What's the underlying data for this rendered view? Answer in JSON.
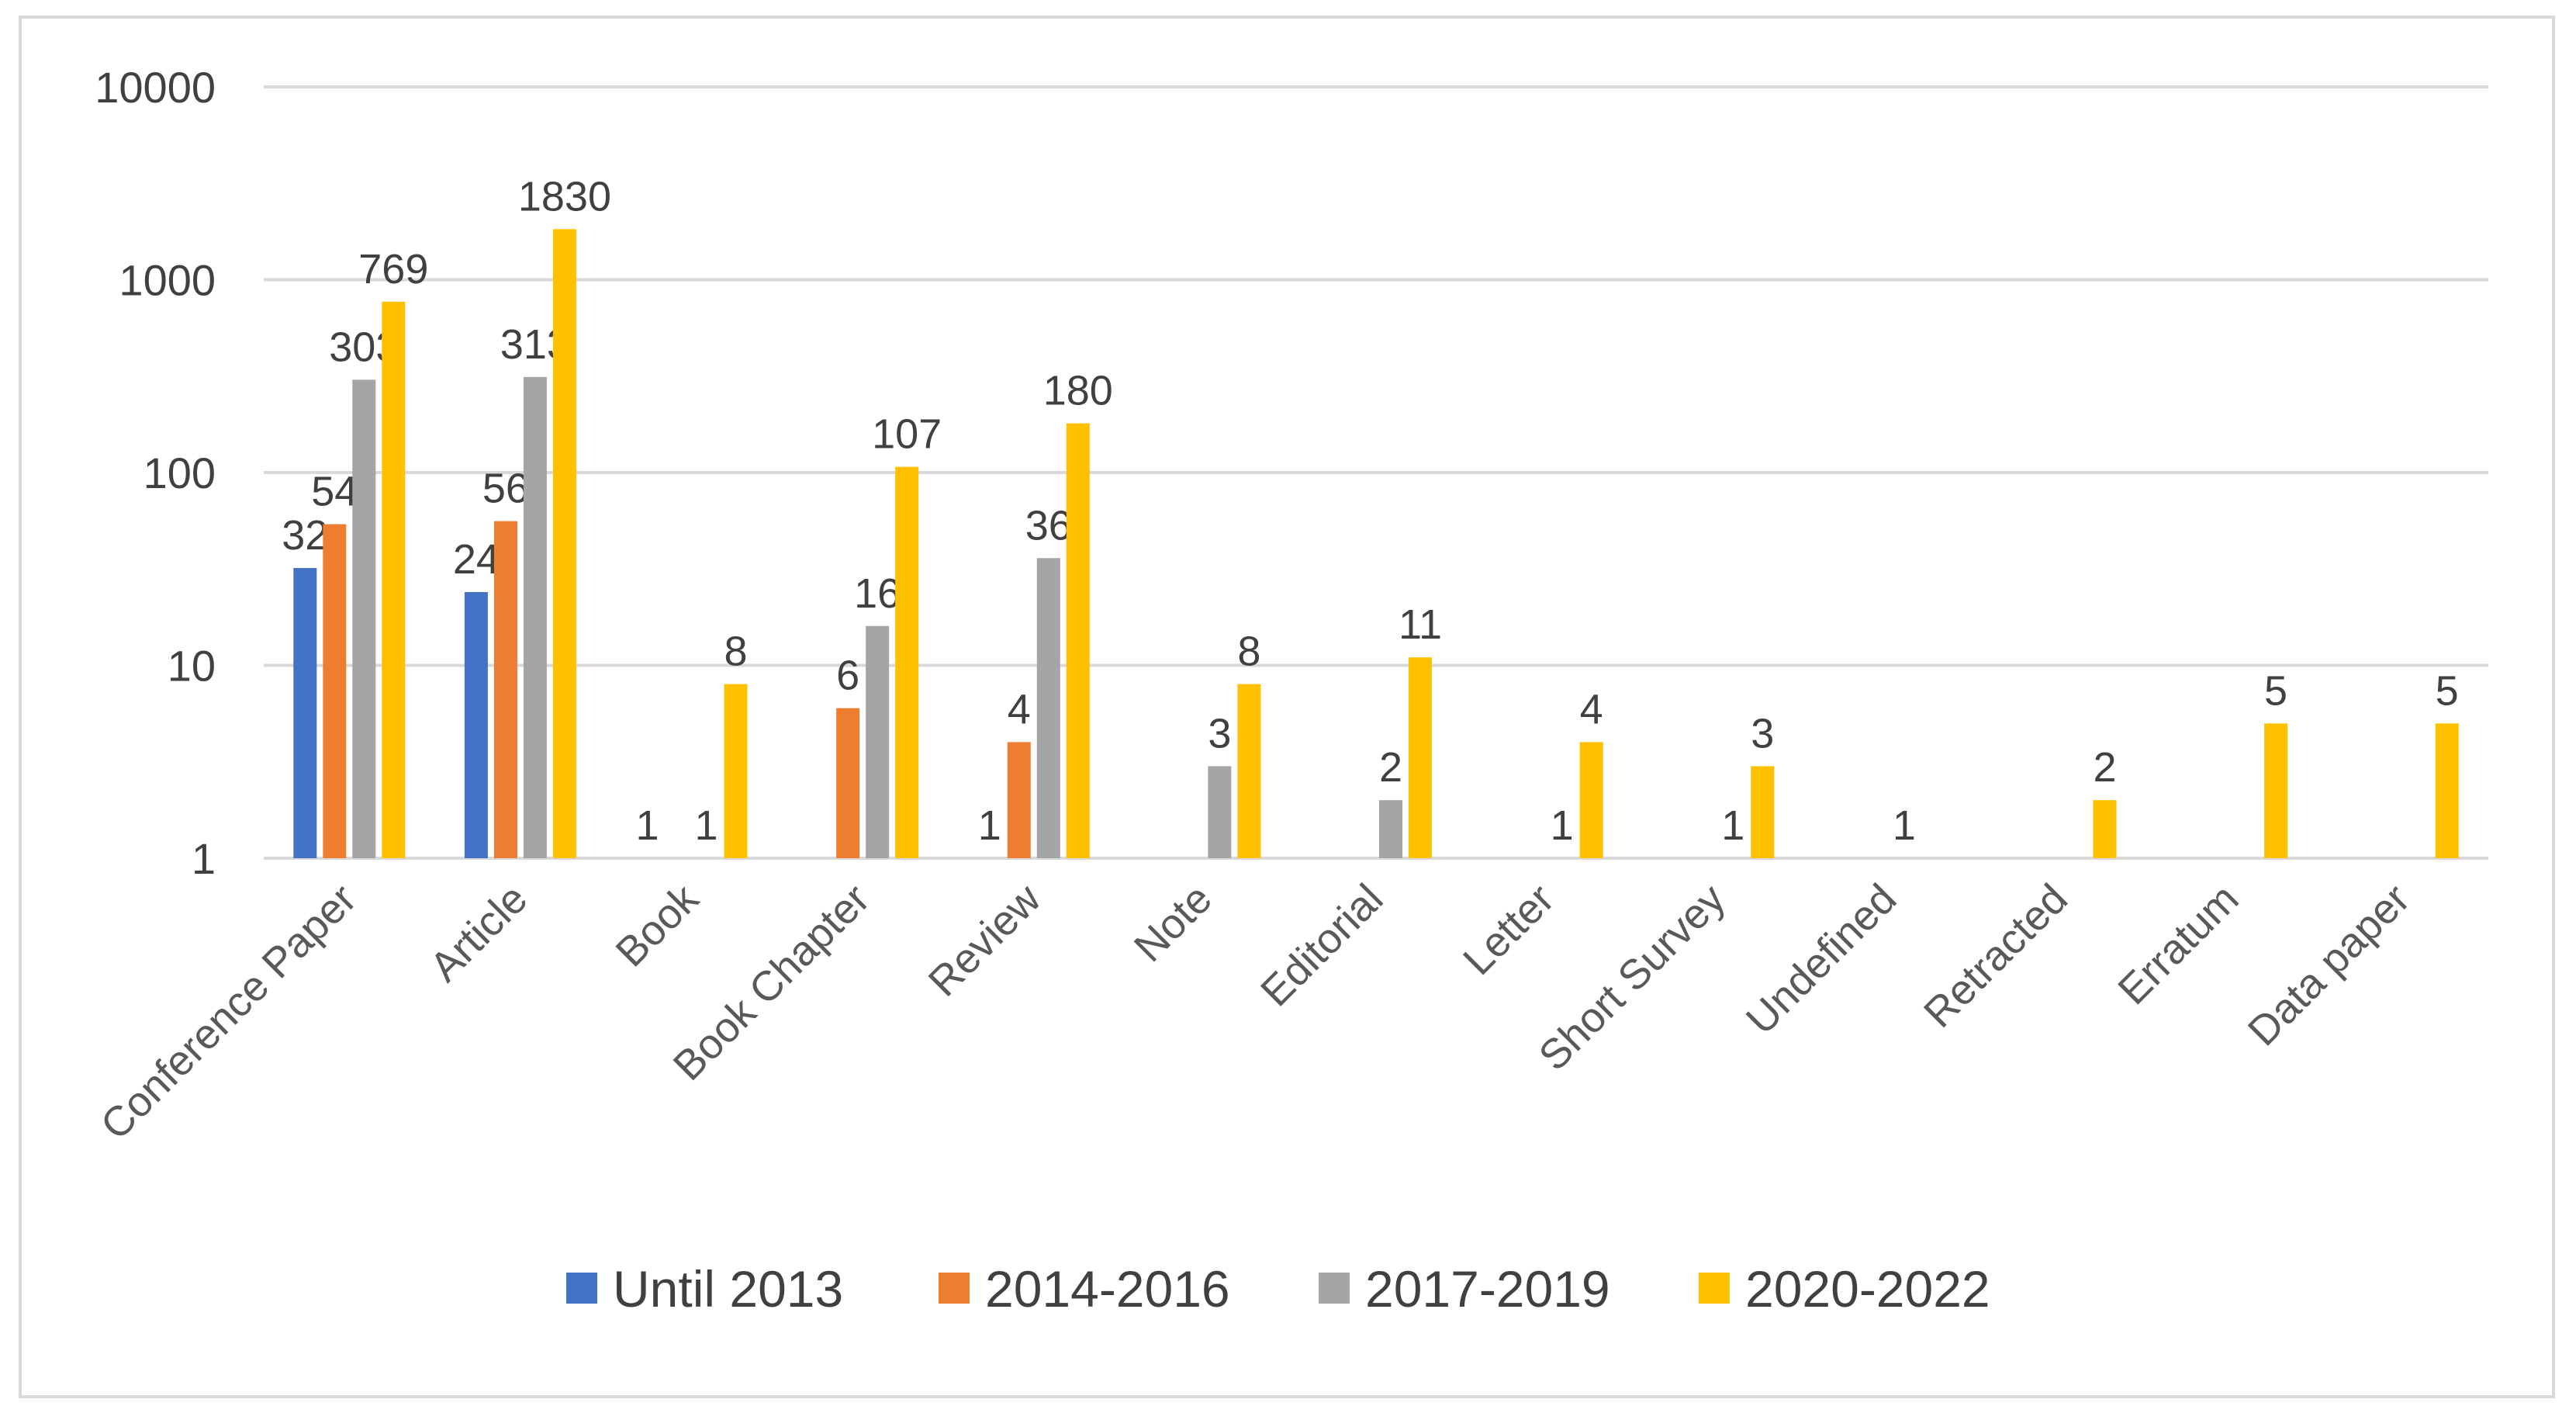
{
  "chart_data": {
    "type": "bar",
    "yscale": "log",
    "ylim": [
      1,
      10000
    ],
    "yticks": [
      1,
      10,
      100,
      1000,
      10000
    ],
    "title": "",
    "xlabel": "",
    "ylabel": "",
    "grid": true,
    "legend_position": "bottom",
    "categories": [
      "Conference Paper",
      "Article",
      "Book",
      "Book Chapter",
      "Review",
      "Note",
      "Editorial",
      "Letter",
      "Short Survey",
      "Undefined",
      "Retracted",
      "Erratum",
      "Data paper"
    ],
    "series": [
      {
        "name": "Until 2013",
        "color": "#4472C4",
        "values": [
          32,
          24,
          1,
          null,
          1,
          null,
          null,
          null,
          null,
          null,
          null,
          null,
          null
        ]
      },
      {
        "name": "2014-2016",
        "color": "#ED7D31",
        "values": [
          54,
          56,
          null,
          6,
          4,
          null,
          null,
          null,
          null,
          null,
          null,
          null,
          null
        ]
      },
      {
        "name": "2017-2019",
        "color": "#A5A5A5",
        "values": [
          303,
          313,
          1,
          16,
          36,
          3,
          2,
          1,
          1,
          1,
          null,
          null,
          null
        ]
      },
      {
        "name": "2020-2022",
        "color": "#FFC000",
        "values": [
          769,
          1830,
          8,
          107,
          180,
          8,
          11,
          4,
          3,
          null,
          2,
          5,
          5
        ]
      }
    ]
  }
}
